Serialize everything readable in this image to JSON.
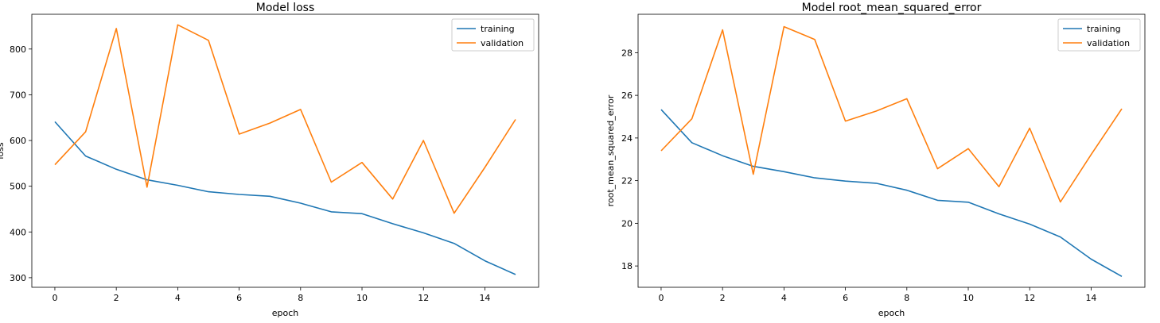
{
  "chart_data": [
    {
      "type": "line",
      "title": "Model loss",
      "xlabel": "epoch",
      "ylabel": "loss",
      "x": [
        0,
        1,
        2,
        3,
        4,
        5,
        6,
        7,
        8,
        9,
        10,
        11,
        12,
        13,
        14,
        15
      ],
      "xlim": [
        -0.75,
        15.75
      ],
      "ylim": [
        279,
        876
      ],
      "xticks": [
        0,
        2,
        4,
        6,
        8,
        10,
        12,
        14
      ],
      "yticks": [
        300,
        400,
        500,
        600,
        700,
        800
      ],
      "legend": "top-right",
      "series": [
        {
          "name": "training",
          "color": "#1f77b4",
          "values": [
            641,
            566,
            537,
            514,
            502,
            488,
            482,
            478,
            463,
            444,
            440,
            418,
            398,
            375,
            337,
            307
          ]
        },
        {
          "name": "validation",
          "color": "#ff7f0e",
          "values": [
            547,
            619,
            845,
            498,
            853,
            819,
            614,
            638,
            668,
            509,
            552,
            472,
            600,
            441,
            541,
            646
          ]
        }
      ]
    },
    {
      "type": "line",
      "title": "Model root_mean_squared_error",
      "xlabel": "epoch",
      "ylabel": "root_mean_squared_error",
      "x": [
        0,
        1,
        2,
        3,
        4,
        5,
        6,
        7,
        8,
        9,
        10,
        11,
        12,
        13,
        14,
        15
      ],
      "xlim": [
        -0.75,
        15.75
      ],
      "ylim": [
        17.0,
        29.8
      ],
      "xticks": [
        0,
        2,
        4,
        6,
        8,
        10,
        12,
        14
      ],
      "yticks": [
        18,
        20,
        22,
        24,
        26,
        28
      ],
      "legend": "top-right",
      "series": [
        {
          "name": "training",
          "color": "#1f77b4",
          "values": [
            25.33,
            23.78,
            23.17,
            22.67,
            22.42,
            22.13,
            21.98,
            21.88,
            21.55,
            21.08,
            20.99,
            20.44,
            19.96,
            19.36,
            18.32,
            17.51
          ]
        },
        {
          "name": "validation",
          "color": "#ff7f0e",
          "values": [
            23.4,
            24.9,
            29.07,
            22.3,
            29.22,
            28.62,
            24.79,
            25.26,
            25.84,
            22.56,
            23.5,
            21.72,
            24.46,
            21.0,
            23.22,
            25.37
          ]
        }
      ]
    }
  ]
}
